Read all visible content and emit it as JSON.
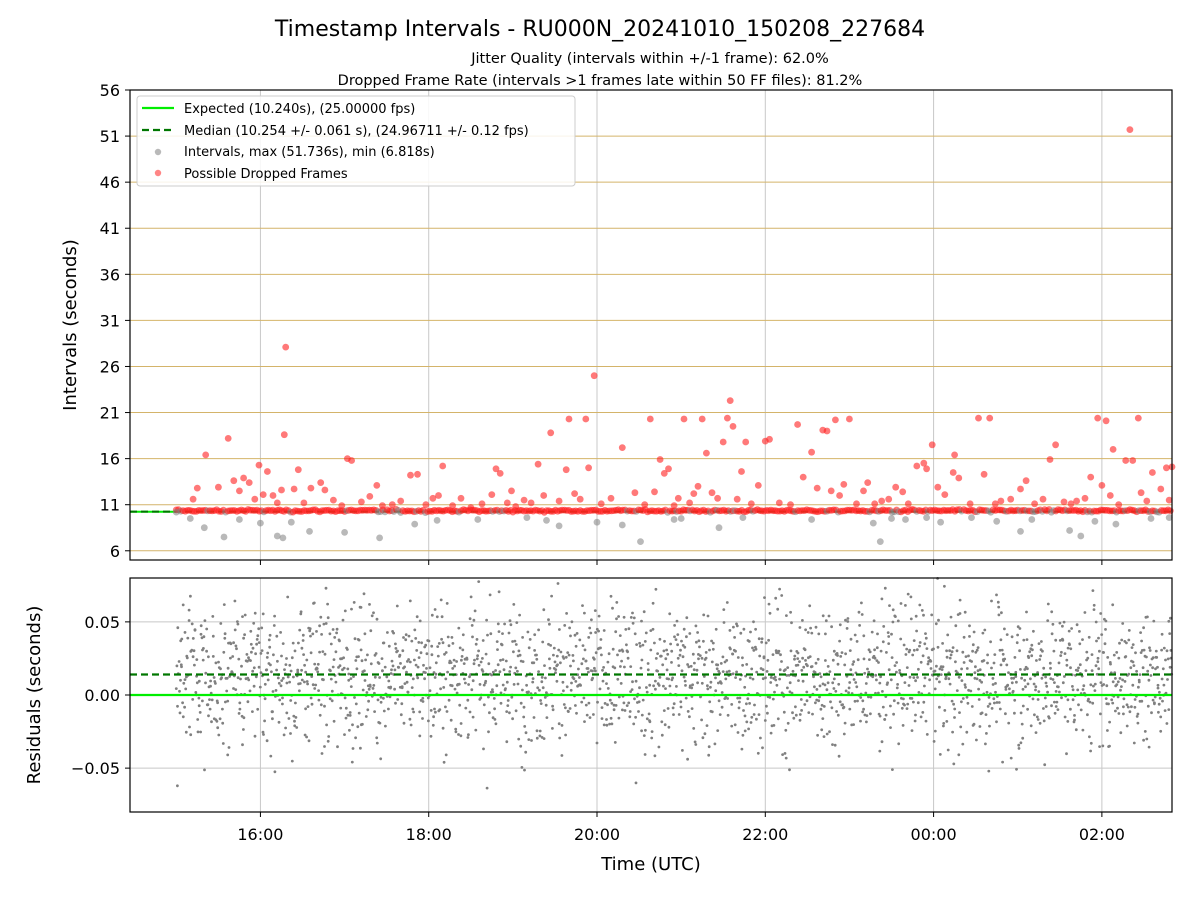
{
  "figure": {
    "title": "Timestamp Intervals - RU000N_20241010_150208_227684",
    "subtitle_1": "Jitter Quality (intervals within +/-1 frame): 62.0%",
    "subtitle_2": "Dropped Frame Rate (intervals >1 frames late within 50 FF files): 81.2%"
  },
  "chart_data": [
    {
      "type": "scatter",
      "panel": "intervals",
      "ylabel": "Intervals (seconds)",
      "xlabel": "",
      "x_axis": "time",
      "xlim": [
        "2024-10-10T14:27",
        "2024-10-11T02:50"
      ],
      "ylim": [
        5,
        56
      ],
      "yticks": [
        6,
        11,
        16,
        21,
        26,
        31,
        36,
        41,
        46,
        51,
        56
      ],
      "xticks": [
        "16:00",
        "18:00",
        "20:00",
        "22:00",
        "00:00",
        "02:00"
      ],
      "grid": "horizontal gridlines at y ticks (tan), vertical gridlines at x ticks (gray)",
      "legend_position": "upper-left",
      "legend": [
        {
          "label": "Expected (10.240s), (25.00000 fps)",
          "style": "solid line",
          "color": "#00ee00"
        },
        {
          "label": "Median (10.254 +/- 0.061 s), (24.96711 +/- 0.12 fps)",
          "style": "dashed line",
          "color": "#007700"
        },
        {
          "label": "Intervals, max (51.736s), min (6.818s)",
          "style": "marker",
          "color": "#808080"
        },
        {
          "label": "Possible Dropped Frames",
          "style": "marker",
          "color": "#ff2020"
        }
      ],
      "lines": [
        {
          "name": "Expected",
          "y": 10.24
        },
        {
          "name": "Median",
          "y": 10.254
        }
      ],
      "series": [
        {
          "name": "Possible Dropped Frames",
          "points": [
            [
              "15:12",
              11.6
            ],
            [
              "15:15",
              12.8
            ],
            [
              "15:21",
              16.4
            ],
            [
              "15:30",
              12.9
            ],
            [
              "15:37",
              18.2
            ],
            [
              "15:41",
              13.6
            ],
            [
              "15:45",
              12.5
            ],
            [
              "15:48",
              13.9
            ],
            [
              "15:52",
              13.4
            ],
            [
              "15:56",
              11.6
            ],
            [
              "15:59",
              15.3
            ],
            [
              "16:02",
              12.1
            ],
            [
              "16:05",
              14.6
            ],
            [
              "16:09",
              12.0
            ],
            [
              "16:12",
              11.2
            ],
            [
              "16:15",
              12.6
            ],
            [
              "16:17",
              18.6
            ],
            [
              "16:18",
              28.1
            ],
            [
              "16:24",
              12.7
            ],
            [
              "16:27",
              14.8
            ],
            [
              "16:31",
              11.2
            ],
            [
              "16:36",
              12.8
            ],
            [
              "16:43",
              13.4
            ],
            [
              "16:46",
              12.6
            ],
            [
              "16:52",
              11.5
            ],
            [
              "16:58",
              10.9
            ],
            [
              "17:02",
              16.0
            ],
            [
              "17:05",
              15.8
            ],
            [
              "17:12",
              11.3
            ],
            [
              "17:18",
              11.9
            ],
            [
              "17:23",
              13.1
            ],
            [
              "17:27",
              10.9
            ],
            [
              "17:34",
              11.0
            ],
            [
              "17:40",
              11.4
            ],
            [
              "17:47",
              14.2
            ],
            [
              "17:52",
              14.3
            ],
            [
              "17:58",
              11.0
            ],
            [
              "18:03",
              11.7
            ],
            [
              "18:07",
              12.0
            ],
            [
              "18:10",
              15.2
            ],
            [
              "18:17",
              10.9
            ],
            [
              "18:23",
              11.7
            ],
            [
              "18:30",
              10.7
            ],
            [
              "18:38",
              11.1
            ],
            [
              "18:45",
              12.1
            ],
            [
              "18:48",
              14.9
            ],
            [
              "18:51",
              14.4
            ],
            [
              "18:56",
              11.2
            ],
            [
              "18:59",
              12.5
            ],
            [
              "19:02",
              10.8
            ],
            [
              "19:08",
              11.5
            ],
            [
              "19:13",
              11.2
            ],
            [
              "19:18",
              15.4
            ],
            [
              "19:22",
              12.0
            ],
            [
              "19:27",
              18.8
            ],
            [
              "19:33",
              11.4
            ],
            [
              "19:38",
              14.8
            ],
            [
              "19:40",
              20.3
            ],
            [
              "19:44",
              12.2
            ],
            [
              "19:48",
              11.6
            ],
            [
              "19:52",
              20.3
            ],
            [
              "19:54",
              15.0
            ],
            [
              "19:58",
              25.0
            ],
            [
              "20:03",
              11.1
            ],
            [
              "20:10",
              11.7
            ],
            [
              "20:18",
              17.2
            ],
            [
              "20:27",
              12.3
            ],
            [
              "20:34",
              11.0
            ],
            [
              "20:38",
              20.3
            ],
            [
              "20:41",
              12.4
            ],
            [
              "20:45",
              15.9
            ],
            [
              "20:48",
              14.4
            ],
            [
              "20:51",
              14.9
            ],
            [
              "20:55",
              10.9
            ],
            [
              "20:58",
              11.7
            ],
            [
              "21:02",
              20.3
            ],
            [
              "21:06",
              11.2
            ],
            [
              "21:09",
              12.2
            ],
            [
              "21:12",
              13.0
            ],
            [
              "21:15",
              20.3
            ],
            [
              "21:18",
              16.6
            ],
            [
              "21:22",
              12.3
            ],
            [
              "21:26",
              11.7
            ],
            [
              "21:30",
              17.8
            ],
            [
              "21:33",
              20.4
            ],
            [
              "21:35",
              22.3
            ],
            [
              "21:37",
              19.5
            ],
            [
              "21:40",
              11.6
            ],
            [
              "21:43",
              14.6
            ],
            [
              "21:46",
              17.8
            ],
            [
              "21:50",
              11.1
            ],
            [
              "21:55",
              13.1
            ],
            [
              "22:00",
              17.9
            ],
            [
              "22:03",
              18.1
            ],
            [
              "22:10",
              11.2
            ],
            [
              "22:18",
              11.0
            ],
            [
              "22:23",
              19.7
            ],
            [
              "22:27",
              14.0
            ],
            [
              "22:33",
              16.7
            ],
            [
              "22:37",
              12.8
            ],
            [
              "22:41",
              19.1
            ],
            [
              "22:44",
              19.0
            ],
            [
              "22:47",
              12.5
            ],
            [
              "22:50",
              20.2
            ],
            [
              "22:53",
              12.0
            ],
            [
              "22:56",
              13.2
            ],
            [
              "23:00",
              20.3
            ],
            [
              "23:05",
              11.1
            ],
            [
              "23:10",
              12.5
            ],
            [
              "23:13",
              13.4
            ],
            [
              "23:18",
              11.1
            ],
            [
              "23:23",
              11.4
            ],
            [
              "23:28",
              11.6
            ],
            [
              "23:33",
              12.9
            ],
            [
              "23:38",
              12.4
            ],
            [
              "23:42",
              11.1
            ],
            [
              "23:48",
              15.2
            ],
            [
              "23:53",
              15.5
            ],
            [
              "23:55",
              14.9
            ],
            [
              "23:59",
              17.5
            ],
            [
              "00:03",
              12.9
            ],
            [
              "00:08",
              12.1
            ],
            [
              "00:14",
              14.5
            ],
            [
              "00:15",
              16.4
            ],
            [
              "00:18",
              13.9
            ],
            [
              "00:26",
              11.1
            ],
            [
              "00:32",
              20.4
            ],
            [
              "00:36",
              14.3
            ],
            [
              "00:40",
              20.4
            ],
            [
              "00:44",
              11.1
            ],
            [
              "00:48",
              11.4
            ],
            [
              "00:55",
              11.6
            ],
            [
              "01:02",
              12.7
            ],
            [
              "01:06",
              13.6
            ],
            [
              "01:12",
              11.1
            ],
            [
              "01:18",
              11.6
            ],
            [
              "01:23",
              15.9
            ],
            [
              "01:27",
              17.5
            ],
            [
              "01:33",
              11.3
            ],
            [
              "01:38",
              11.1
            ],
            [
              "01:42",
              11.4
            ],
            [
              "01:48",
              11.7
            ],
            [
              "01:52",
              14.0
            ],
            [
              "01:57",
              20.4
            ],
            [
              "02:00",
              13.1
            ],
            [
              "02:03",
              20.1
            ],
            [
              "02:06",
              12.0
            ],
            [
              "02:08",
              17.0
            ],
            [
              "02:12",
              11.0
            ],
            [
              "02:17",
              15.8
            ],
            [
              "02:20",
              51.7
            ],
            [
              "02:22",
              15.8
            ],
            [
              "02:26",
              20.4
            ],
            [
              "02:28",
              12.3
            ],
            [
              "02:32",
              11.4
            ],
            [
              "02:36",
              14.5
            ],
            [
              "02:42",
              12.7
            ],
            [
              "02:46",
              15.0
            ],
            [
              "02:48",
              11.5
            ],
            [
              "02:50",
              15.1
            ]
          ]
        },
        {
          "name": "Intervals",
          "points": [
            [
              "15:00",
              10.2
            ],
            [
              "15:10",
              9.5
            ],
            [
              "15:20",
              8.5
            ],
            [
              "15:34",
              7.5
            ],
            [
              "15:45",
              9.4
            ],
            [
              "16:00",
              9.0
            ],
            [
              "16:12",
              7.6
            ],
            [
              "16:16",
              7.4
            ],
            [
              "16:22",
              9.1
            ],
            [
              "16:35",
              8.1
            ],
            [
              "17:00",
              8.0
            ],
            [
              "17:25",
              7.4
            ],
            [
              "17:50",
              8.9
            ],
            [
              "18:06",
              9.3
            ],
            [
              "18:35",
              9.4
            ],
            [
              "19:10",
              9.6
            ],
            [
              "19:24",
              9.3
            ],
            [
              "19:33",
              8.7
            ],
            [
              "20:00",
              9.1
            ],
            [
              "20:18",
              8.8
            ],
            [
              "20:31",
              7.0
            ],
            [
              "20:55",
              9.4
            ],
            [
              "21:00",
              9.5
            ],
            [
              "21:27",
              8.5
            ],
            [
              "21:44",
              9.6
            ],
            [
              "22:33",
              9.4
            ],
            [
              "23:17",
              9.0
            ],
            [
              "23:22",
              7.0
            ],
            [
              "23:30",
              9.5
            ],
            [
              "23:40",
              9.4
            ],
            [
              "23:55",
              9.6
            ],
            [
              "00:05",
              9.1
            ],
            [
              "00:27",
              9.6
            ],
            [
              "00:45",
              9.2
            ],
            [
              "01:02",
              8.1
            ],
            [
              "01:10",
              9.4
            ],
            [
              "01:37",
              8.2
            ],
            [
              "01:45",
              7.6
            ],
            [
              "01:55",
              9.2
            ],
            [
              "02:10",
              8.9
            ],
            [
              "02:35",
              9.5
            ],
            [
              "02:48",
              9.6
            ]
          ]
        }
      ]
    },
    {
      "type": "scatter",
      "panel": "residuals",
      "ylabel": "Residuals (seconds)",
      "xlabel": "Time (UTC)",
      "x_axis": "time",
      "xlim": [
        "2024-10-10T14:27",
        "2024-10-11T02:50"
      ],
      "ylim": [
        -0.08,
        0.08
      ],
      "yticks": [
        -0.05,
        0.0,
        0.05
      ],
      "ytick_labels": [
        "−0.05",
        "0.00",
        "0.05"
      ],
      "xticks": [
        "16:00",
        "18:00",
        "20:00",
        "22:00",
        "00:00",
        "02:00"
      ],
      "grid": "gray gridlines at x and y ticks",
      "lines": [
        {
          "name": "Expected",
          "y": 0.0,
          "color": "#00ee00"
        },
        {
          "name": "Median",
          "y": 0.014,
          "color": "#007700"
        }
      ],
      "series": [
        {
          "name": "Residuals",
          "color": "#808080",
          "start": "15:00",
          "end": "02:50",
          "mean": 0.014,
          "spread": 0.035,
          "range": [
            -0.08,
            0.08
          ]
        }
      ]
    }
  ]
}
